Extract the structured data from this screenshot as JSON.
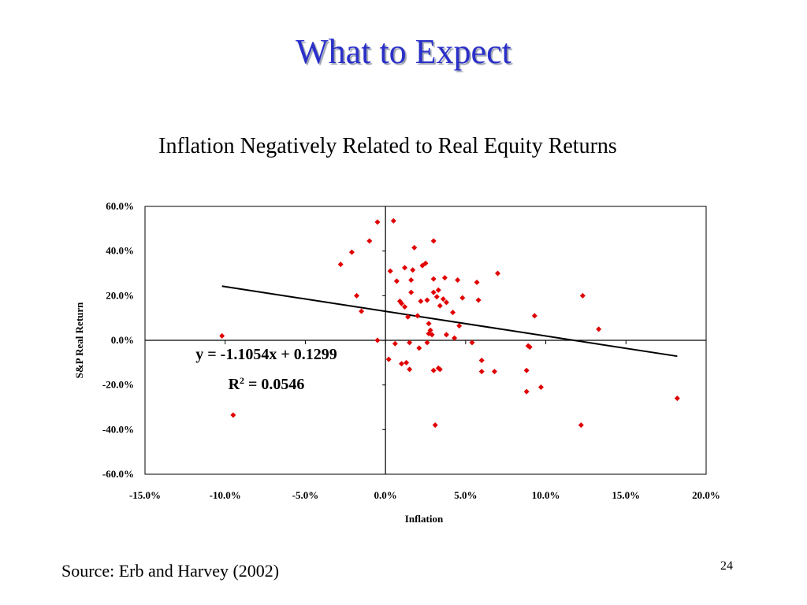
{
  "slide": {
    "title": "What to Expect",
    "subtitle": "Inflation Negatively Related to Real Equity Returns",
    "source": "Source: Erb and Harvey (2002)",
    "page_number": "24"
  },
  "colors": {
    "title": "#2a2fc9",
    "points": "#e00000",
    "trendline": "#000000"
  },
  "chart_data": {
    "type": "scatter",
    "xlabel": "Inflation",
    "ylabel": "S&P Real Return",
    "xlim": [
      -0.15,
      0.2
    ],
    "ylim": [
      -0.6,
      0.6
    ],
    "x_ticks": [
      -0.15,
      -0.1,
      -0.05,
      0.0,
      0.05,
      0.1,
      0.15,
      0.2
    ],
    "y_ticks": [
      -0.6,
      -0.4,
      -0.2,
      0.0,
      0.2,
      0.4,
      0.6
    ],
    "x_tick_labels": [
      "-15.0%",
      "-10.0%",
      "-5.0%",
      "0.0%",
      "5.0%",
      "10.0%",
      "15.0%",
      "20.0%"
    ],
    "y_tick_labels": [
      "-60.0%",
      "-40.0%",
      "-20.0%",
      "0.0%",
      "20.0%",
      "40.0%",
      "60.0%"
    ],
    "trendline": {
      "slope": -1.1054,
      "intercept": 0.1299,
      "x_range": [
        -0.102,
        0.182
      ]
    },
    "equation": "y = -1.1054x + 0.1299",
    "r2_label": "R",
    "r2_sup": "2",
    "r2_value": " = 0.0546",
    "grid": false,
    "points": [
      {
        "x": -0.102,
        "y": 0.02
      },
      {
        "x": -0.095,
        "y": -0.335
      },
      {
        "x": -0.028,
        "y": 0.34
      },
      {
        "x": -0.021,
        "y": 0.395
      },
      {
        "x": -0.018,
        "y": 0.2
      },
      {
        "x": -0.015,
        "y": 0.13
      },
      {
        "x": -0.01,
        "y": 0.445
      },
      {
        "x": -0.005,
        "y": 0.53
      },
      {
        "x": -0.005,
        "y": 0.0
      },
      {
        "x": 0.002,
        "y": -0.085
      },
      {
        "x": 0.003,
        "y": 0.31
      },
      {
        "x": 0.005,
        "y": 0.535
      },
      {
        "x": 0.006,
        "y": -0.015
      },
      {
        "x": 0.007,
        "y": 0.265
      },
      {
        "x": 0.009,
        "y": 0.175
      },
      {
        "x": 0.01,
        "y": 0.165
      },
      {
        "x": 0.01,
        "y": -0.105
      },
      {
        "x": 0.012,
        "y": 0.325
      },
      {
        "x": 0.012,
        "y": 0.15
      },
      {
        "x": 0.013,
        "y": -0.1
      },
      {
        "x": 0.014,
        "y": 0.105
      },
      {
        "x": 0.015,
        "y": -0.01
      },
      {
        "x": 0.015,
        "y": -0.13
      },
      {
        "x": 0.016,
        "y": 0.27
      },
      {
        "x": 0.016,
        "y": 0.215
      },
      {
        "x": 0.017,
        "y": 0.315
      },
      {
        "x": 0.018,
        "y": 0.415
      },
      {
        "x": 0.02,
        "y": 0.11
      },
      {
        "x": 0.021,
        "y": -0.035
      },
      {
        "x": 0.022,
        "y": 0.175
      },
      {
        "x": 0.023,
        "y": 0.335
      },
      {
        "x": 0.025,
        "y": 0.345
      },
      {
        "x": 0.026,
        "y": 0.18
      },
      {
        "x": 0.026,
        "y": -0.01
      },
      {
        "x": 0.027,
        "y": 0.075
      },
      {
        "x": 0.027,
        "y": 0.03
      },
      {
        "x": 0.028,
        "y": 0.045
      },
      {
        "x": 0.029,
        "y": 0.025
      },
      {
        "x": 0.03,
        "y": 0.275
      },
      {
        "x": 0.03,
        "y": 0.445
      },
      {
        "x": 0.03,
        "y": 0.215
      },
      {
        "x": 0.03,
        "y": -0.135
      },
      {
        "x": 0.031,
        "y": -0.38
      },
      {
        "x": 0.032,
        "y": 0.195
      },
      {
        "x": 0.033,
        "y": 0.225
      },
      {
        "x": 0.033,
        "y": -0.125
      },
      {
        "x": 0.034,
        "y": 0.155
      },
      {
        "x": 0.034,
        "y": -0.13
      },
      {
        "x": 0.036,
        "y": 0.185
      },
      {
        "x": 0.037,
        "y": 0.28
      },
      {
        "x": 0.038,
        "y": 0.17
      },
      {
        "x": 0.038,
        "y": 0.025
      },
      {
        "x": 0.042,
        "y": 0.125
      },
      {
        "x": 0.043,
        "y": 0.01
      },
      {
        "x": 0.045,
        "y": 0.27
      },
      {
        "x": 0.046,
        "y": 0.065
      },
      {
        "x": 0.048,
        "y": 0.19
      },
      {
        "x": 0.054,
        "y": -0.01
      },
      {
        "x": 0.057,
        "y": 0.26
      },
      {
        "x": 0.058,
        "y": 0.18
      },
      {
        "x": 0.06,
        "y": -0.09
      },
      {
        "x": 0.06,
        "y": -0.14
      },
      {
        "x": 0.068,
        "y": -0.14
      },
      {
        "x": 0.07,
        "y": 0.3
      },
      {
        "x": 0.088,
        "y": -0.135
      },
      {
        "x": 0.088,
        "y": -0.23
      },
      {
        "x": 0.089,
        "y": -0.025
      },
      {
        "x": 0.09,
        "y": -0.03
      },
      {
        "x": 0.093,
        "y": 0.11
      },
      {
        "x": 0.097,
        "y": -0.21
      },
      {
        "x": 0.122,
        "y": -0.38
      },
      {
        "x": 0.123,
        "y": 0.2
      },
      {
        "x": 0.133,
        "y": 0.05
      },
      {
        "x": 0.182,
        "y": -0.26
      }
    ]
  }
}
